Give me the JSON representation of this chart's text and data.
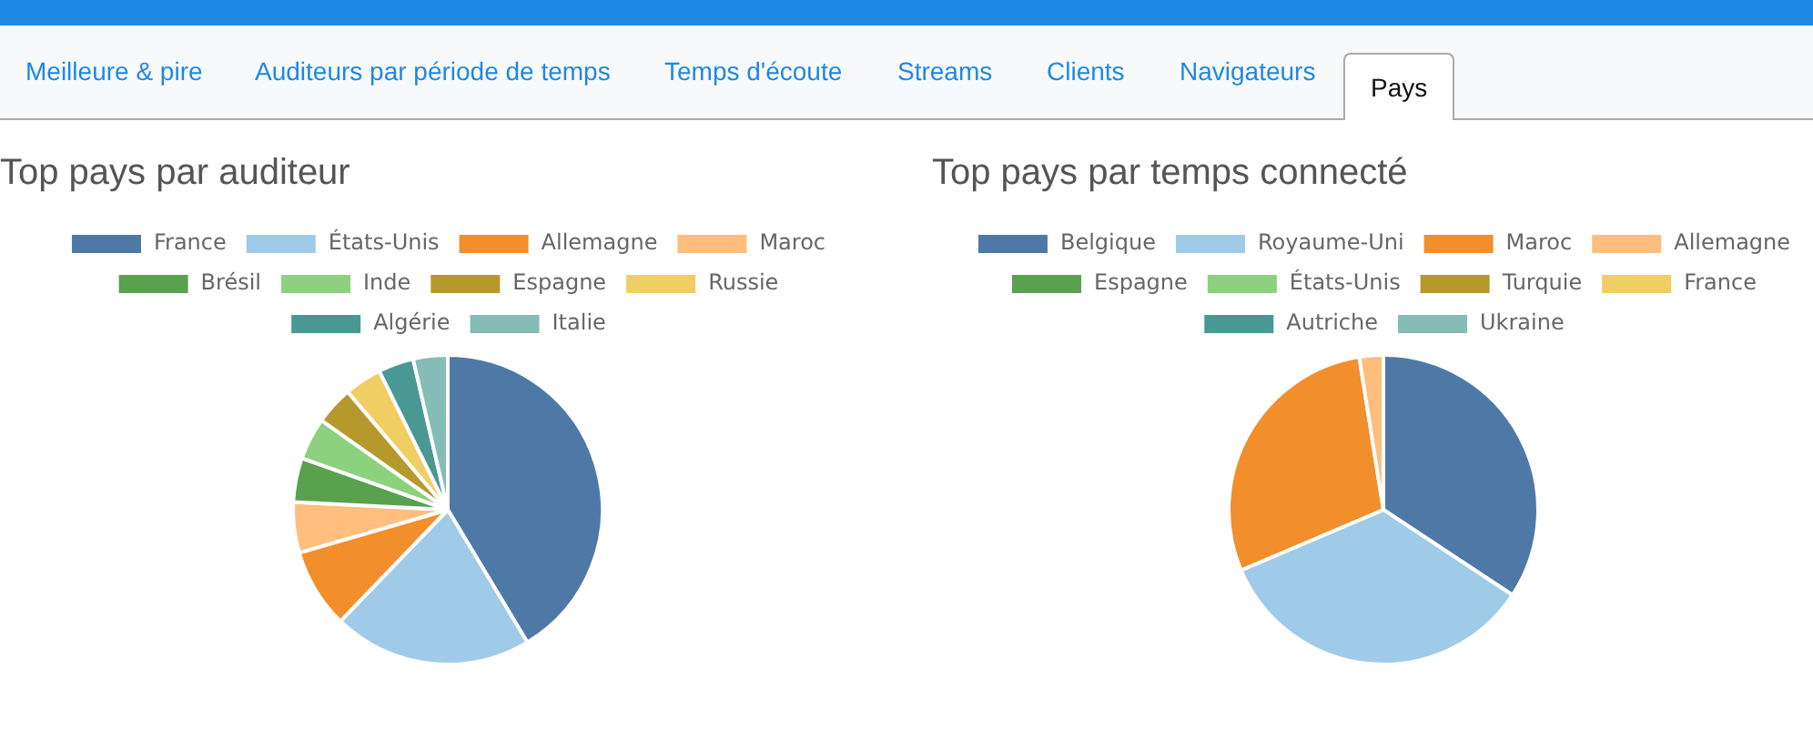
{
  "chart_data": [
    {
      "type": "other",
      "annotations": [
        "Meilleure & pire",
        "Auditeurs par période de temps",
        "Temps d'écoute",
        "Streams",
        "Clients",
        "Navigateurs",
        "Pays"
      ]
    },
    {
      "type": "pie",
      "title": "Top pays par auditeur",
      "legend": "top",
      "categories": [
        "France",
        "États-Unis",
        "Allemagne",
        "Maroc",
        "Brésil",
        "Inde",
        "Espagne",
        "Russie",
        "Algérie",
        "Italie"
      ],
      "values": [
        41.4,
        20.8,
        8.3,
        5.3,
        4.6,
        4.4,
        4.0,
        3.9,
        3.7,
        3.6
      ],
      "colors": [
        "#4e79a7",
        "#a0cbe8",
        "#f28e2b",
        "#ffbe7d",
        "#59a14f",
        "#8cd17d",
        "#b6992d",
        "#f1ce63",
        "#499894",
        "#86bcb6"
      ]
    },
    {
      "type": "pie",
      "title": "Top pays par temps connecté",
      "legend": "top",
      "categories": [
        "Belgique",
        "Royaume-Uni",
        "Maroc",
        "Allemagne",
        "Espagne",
        "États-Unis",
        "Turquie",
        "France",
        "Autriche",
        "Ukraine"
      ],
      "values": [
        34.3,
        34.3,
        28.9,
        2.5,
        null,
        null,
        null,
        null,
        null,
        null
      ],
      "colors": [
        "#4e79a7",
        "#a0cbe8",
        "#f28e2b",
        "#ffbe7d",
        "#59a14f",
        "#8cd17d",
        "#b6992d",
        "#f1ce63",
        "#499894",
        "#86bcb6"
      ]
    }
  ]
}
